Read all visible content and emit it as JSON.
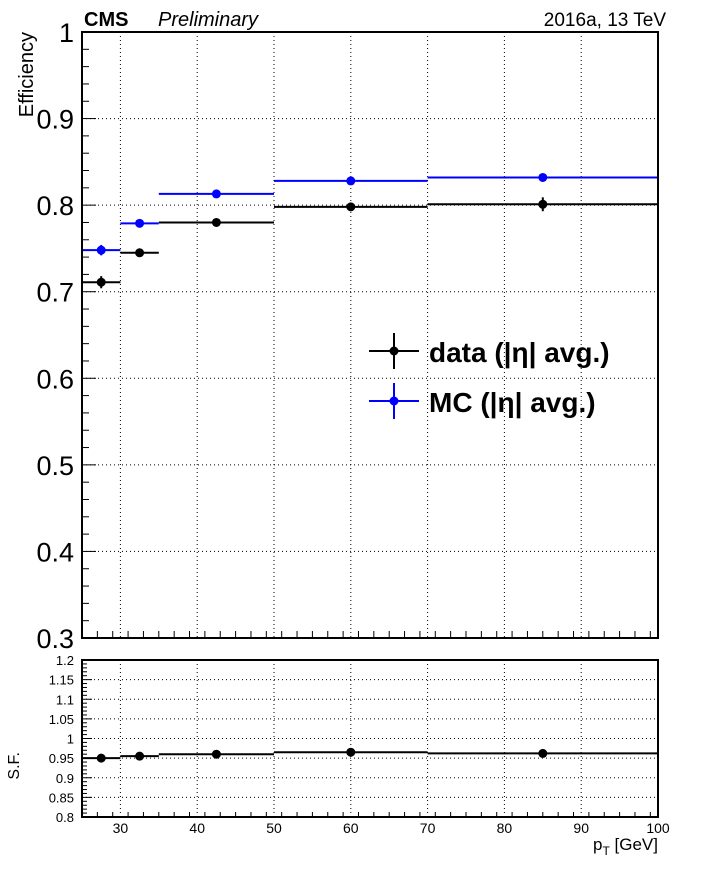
{
  "header": {
    "experiment": "CMS",
    "status": "Preliminary",
    "run_info": "2016a, 13 TeV"
  },
  "chart_data": [
    {
      "type": "scatter",
      "panel": "main",
      "title": "",
      "xlabel": "p_T [GeV]",
      "ylabel": "Efficiency",
      "xlim": [
        25,
        100
      ],
      "ylim": [
        0.3,
        1.0
      ],
      "x_ticks": [
        30,
        40,
        50,
        60,
        70,
        80,
        90,
        100
      ],
      "y_ticks": [
        0.3,
        0.4,
        0.5,
        0.6,
        0.7,
        0.8,
        0.9,
        1.0
      ],
      "y_tick_labels": [
        "0.3",
        "0.4",
        "0.5",
        "0.6",
        "0.7",
        "0.8",
        "0.9",
        "1"
      ],
      "grid": true,
      "legend_position": "center-right",
      "bins": [
        [
          25,
          30
        ],
        [
          30,
          35
        ],
        [
          35,
          50
        ],
        [
          50,
          70
        ],
        [
          70,
          100
        ]
      ],
      "series": [
        {
          "name": "data (|η| avg.)",
          "color": "#000000",
          "x": [
            27.5,
            32.5,
            42.5,
            60,
            85
          ],
          "y": [
            0.711,
            0.745,
            0.78,
            0.798,
            0.801
          ],
          "yerr": [
            0.007,
            0.004,
            0.003,
            0.003,
            0.008
          ]
        },
        {
          "name": "MC (|η| avg.)",
          "color": "#0000ff",
          "x": [
            27.5,
            32.5,
            42.5,
            60,
            85
          ],
          "y": [
            0.748,
            0.779,
            0.813,
            0.828,
            0.832
          ],
          "yerr": [
            0.006,
            0.003,
            0.002,
            0.002,
            0.003
          ]
        }
      ]
    },
    {
      "type": "scatter",
      "panel": "ratio",
      "title": "",
      "xlabel": "p_T [GeV]",
      "ylabel": "S.F.",
      "xlim": [
        25,
        100
      ],
      "ylim": [
        0.8,
        1.2
      ],
      "x_ticks": [
        30,
        40,
        50,
        60,
        70,
        80,
        90,
        100
      ],
      "y_ticks": [
        0.8,
        0.85,
        0.9,
        0.95,
        1.0,
        1.05,
        1.1,
        1.15,
        1.2
      ],
      "y_tick_labels": [
        "0.8",
        "0.85",
        "0.9",
        "0.95",
        "1",
        "1.05",
        "1.1",
        "1.15",
        "1.2"
      ],
      "grid": true,
      "bins": [
        [
          25,
          30
        ],
        [
          30,
          35
        ],
        [
          35,
          50
        ],
        [
          50,
          70
        ],
        [
          70,
          100
        ]
      ],
      "series": [
        {
          "name": "",
          "color": "#000000",
          "x": [
            27.5,
            32.5,
            42.5,
            60,
            85
          ],
          "y": [
            0.95,
            0.955,
            0.96,
            0.965,
            0.962
          ],
          "yerr": [
            0.006,
            0.004,
            0.003,
            0.003,
            0.006
          ]
        }
      ]
    }
  ]
}
